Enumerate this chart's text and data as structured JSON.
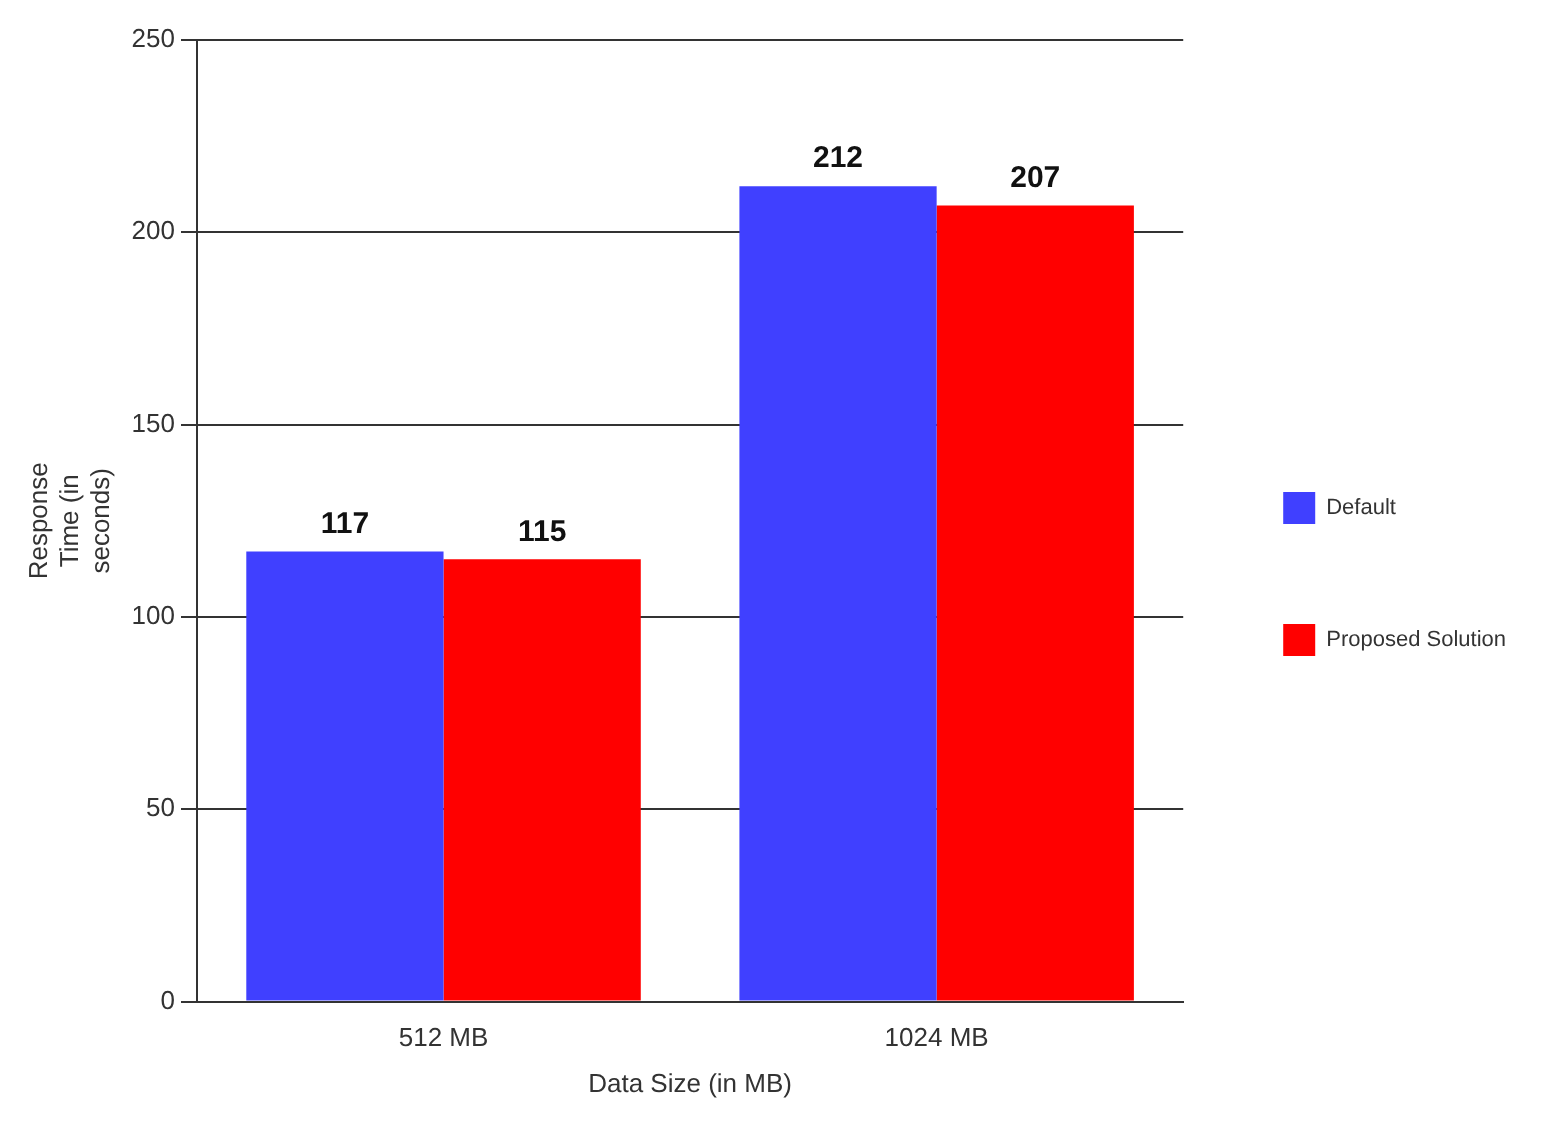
{
  "chart_data": {
    "type": "bar",
    "xlabel": "Data Size (in MB)",
    "ylabel": "Response Time (in seconds)",
    "categories": [
      "512 MB",
      "1024 MB"
    ],
    "series": [
      {
        "name": "Default",
        "color": "#4040ff",
        "values": [
          117,
          212
        ]
      },
      {
        "name": "Proposed Solution",
        "color": "#ff0000",
        "values": [
          115,
          207
        ]
      }
    ],
    "ylim": [
      0,
      250
    ],
    "yticks": [
      0,
      50,
      100,
      150,
      200,
      250
    ],
    "grid": "y",
    "legend": "right",
    "data_labels": true
  }
}
